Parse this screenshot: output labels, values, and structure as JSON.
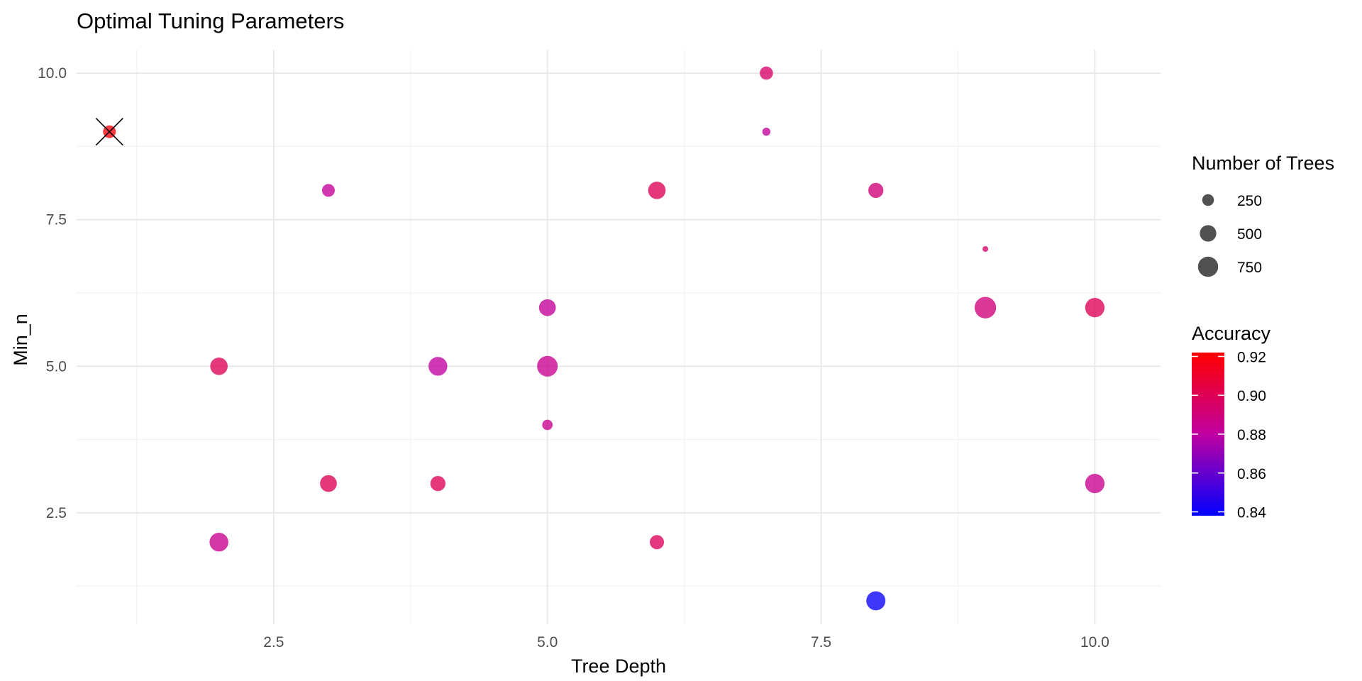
{
  "chart_data": {
    "type": "scatter",
    "title": "Optimal Tuning Parameters",
    "xlabel": "Tree Depth",
    "ylabel": "Min_n",
    "xlim": [
      0.7,
      10.6
    ],
    "ylim": [
      0.6,
      10.4
    ],
    "xticks": [
      2.5,
      5.0,
      7.5,
      10.0
    ],
    "xtick_labels": [
      "2.5",
      "5.0",
      "7.5",
      "10.0"
    ],
    "yticks": [
      2.5,
      5.0,
      7.5,
      10.0
    ],
    "ytick_labels": [
      "2.5",
      "5.0",
      "7.5",
      "10.0"
    ],
    "grid": true,
    "size_legend": {
      "title": "Number of Trees",
      "entries": [
        {
          "value": 250,
          "label": "250"
        },
        {
          "value": 500,
          "label": "500"
        },
        {
          "value": 750,
          "label": "750"
        }
      ]
    },
    "color_legend": {
      "title": "Accuracy",
      "min": 0.838,
      "max": 0.922,
      "ticks": [
        0.84,
        0.86,
        0.88,
        0.9,
        0.92
      ],
      "tick_labels": [
        "0.84",
        "0.86",
        "0.88",
        "0.90",
        "0.92"
      ],
      "low_color": "#0000FF",
      "mid_color": "#C000A0",
      "high_color": "#FF0000"
    },
    "legend_position": "right",
    "best_point_marker": {
      "x": 1,
      "y": 9,
      "shape": "cross"
    },
    "points": [
      {
        "x": 1,
        "y": 9,
        "trees": 300,
        "accuracy": 0.92
      },
      {
        "x": 2,
        "y": 5,
        "trees": 560,
        "accuracy": 0.9
      },
      {
        "x": 2,
        "y": 2,
        "trees": 650,
        "accuracy": 0.885
      },
      {
        "x": 3,
        "y": 8,
        "trees": 300,
        "accuracy": 0.882
      },
      {
        "x": 3,
        "y": 3,
        "trees": 520,
        "accuracy": 0.9
      },
      {
        "x": 4,
        "y": 5,
        "trees": 650,
        "accuracy": 0.88
      },
      {
        "x": 4,
        "y": 3,
        "trees": 420,
        "accuracy": 0.9
      },
      {
        "x": 5,
        "y": 6,
        "trees": 520,
        "accuracy": 0.882
      },
      {
        "x": 5,
        "y": 5,
        "trees": 780,
        "accuracy": 0.885
      },
      {
        "x": 5,
        "y": 4,
        "trees": 200,
        "accuracy": 0.885
      },
      {
        "x": 6,
        "y": 8,
        "trees": 560,
        "accuracy": 0.9
      },
      {
        "x": 6,
        "y": 2,
        "trees": 370,
        "accuracy": 0.898
      },
      {
        "x": 7,
        "y": 10,
        "trees": 320,
        "accuracy": 0.895
      },
      {
        "x": 7,
        "y": 9,
        "trees": 120,
        "accuracy": 0.882
      },
      {
        "x": 8,
        "y": 8,
        "trees": 420,
        "accuracy": 0.89
      },
      {
        "x": 8,
        "y": 1,
        "trees": 670,
        "accuracy": 0.84
      },
      {
        "x": 9,
        "y": 7,
        "trees": 60,
        "accuracy": 0.895
      },
      {
        "x": 9,
        "y": 6,
        "trees": 850,
        "accuracy": 0.89
      },
      {
        "x": 10,
        "y": 6,
        "trees": 690,
        "accuracy": 0.9
      },
      {
        "x": 10,
        "y": 3,
        "trees": 690,
        "accuracy": 0.885
      }
    ]
  }
}
